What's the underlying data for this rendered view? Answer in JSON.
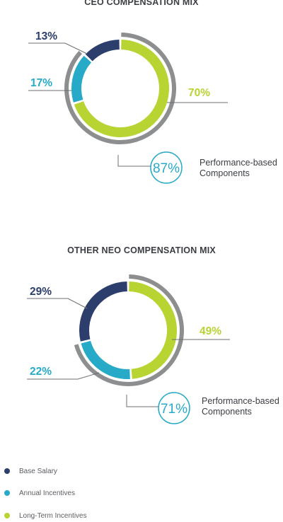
{
  "colors": {
    "base": "#2c3e6b",
    "annual": "#27a9c8",
    "lti": "#b8d433",
    "ring": "#8c8e90",
    "leader": "#6d6f72",
    "text": "#3a3d42"
  },
  "legend": [
    {
      "label": "Base Salary",
      "color": "#2c3e6b"
    },
    {
      "label": "Annual Incentives",
      "color": "#27a9c8"
    },
    {
      "label": "Long-Term Incentives",
      "color": "#b8d433"
    }
  ],
  "chart_data": [
    {
      "type": "pie",
      "title": "CEO COMPENSATION MIX",
      "categories": [
        "Base Salary",
        "Annual Incentives",
        "Long-Term Incentives"
      ],
      "values": [
        13,
        17,
        70
      ],
      "value_labels": [
        "13%",
        "17%",
        "70%"
      ],
      "performance_based": {
        "value": 87,
        "label": "87%",
        "text_line1": "Performance-based",
        "text_line2": "Components"
      }
    },
    {
      "type": "pie",
      "title": "OTHER NEO COMPENSATION MIX",
      "categories": [
        "Base Salary",
        "Annual Incentives",
        "Long-Term Incentives"
      ],
      "values": [
        29,
        22,
        49
      ],
      "value_labels": [
        "29%",
        "22%",
        "49%"
      ],
      "performance_based": {
        "value": 71,
        "label": "71%",
        "text_line1": "Performance-based",
        "text_line2": "Components"
      }
    }
  ]
}
